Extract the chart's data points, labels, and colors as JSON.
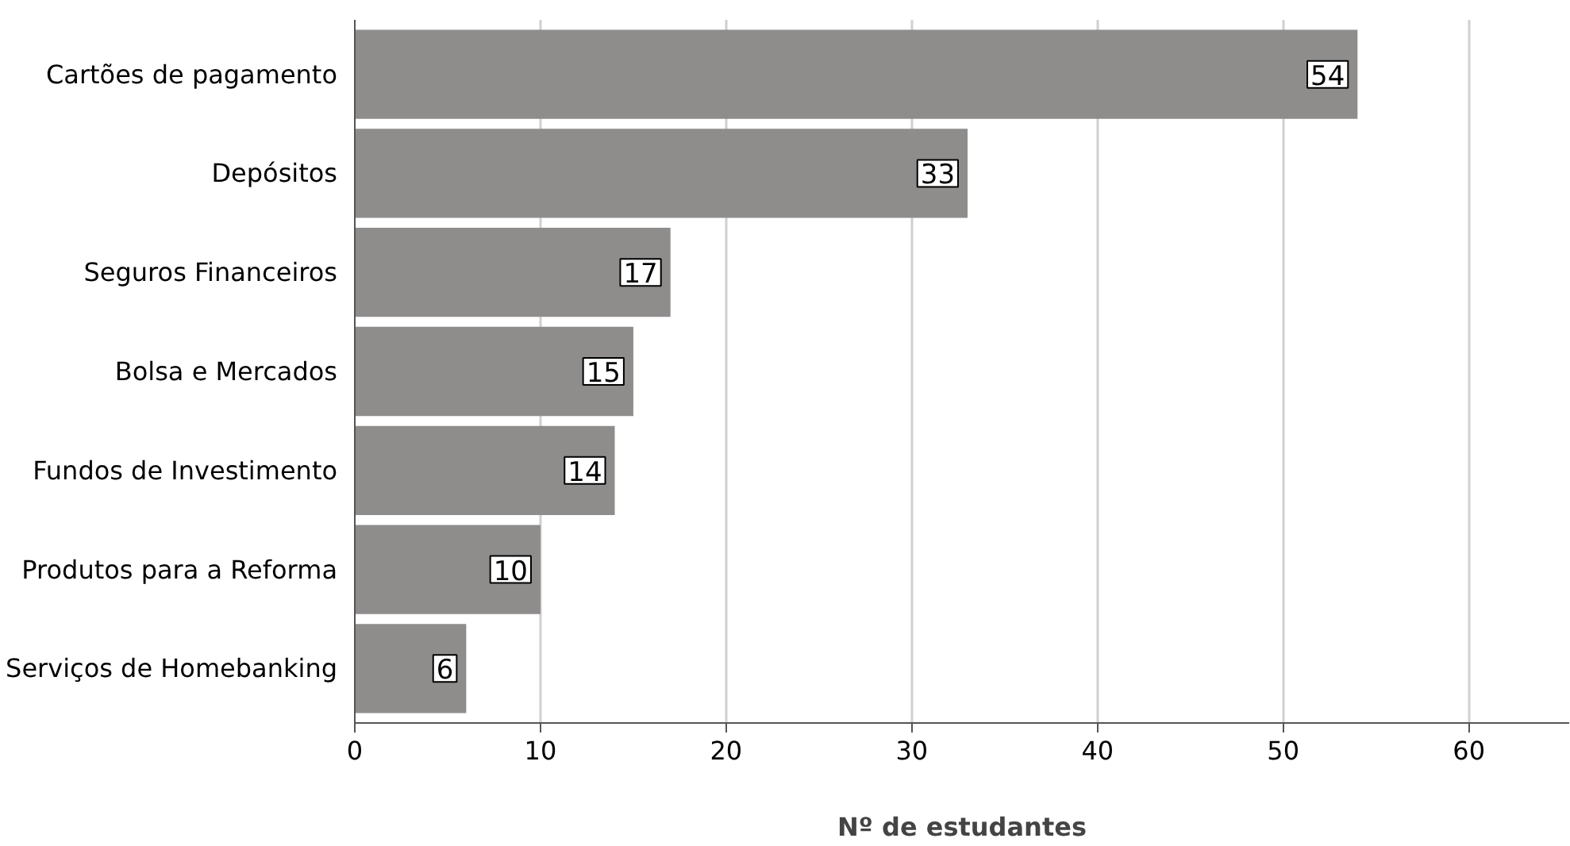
{
  "chart_data": {
    "type": "bar",
    "orientation": "horizontal",
    "xlabel": "Nº de estudantes",
    "categories": [
      "Cartões de pagamento",
      "Depósitos",
      "Seguros Financeiros",
      "Bolsa e Mercados",
      "Fundos de Investimento",
      "Produtos para a Reforma",
      "Serviços de Homebanking"
    ],
    "values": [
      54,
      33,
      17,
      15,
      14,
      10,
      6
    ],
    "color": "#8f8c8c",
    "xlim": [
      0,
      65.4
    ],
    "xticks": [
      0,
      10,
      20,
      30,
      40,
      50,
      60
    ],
    "grid": "x",
    "data_labels": true
  }
}
